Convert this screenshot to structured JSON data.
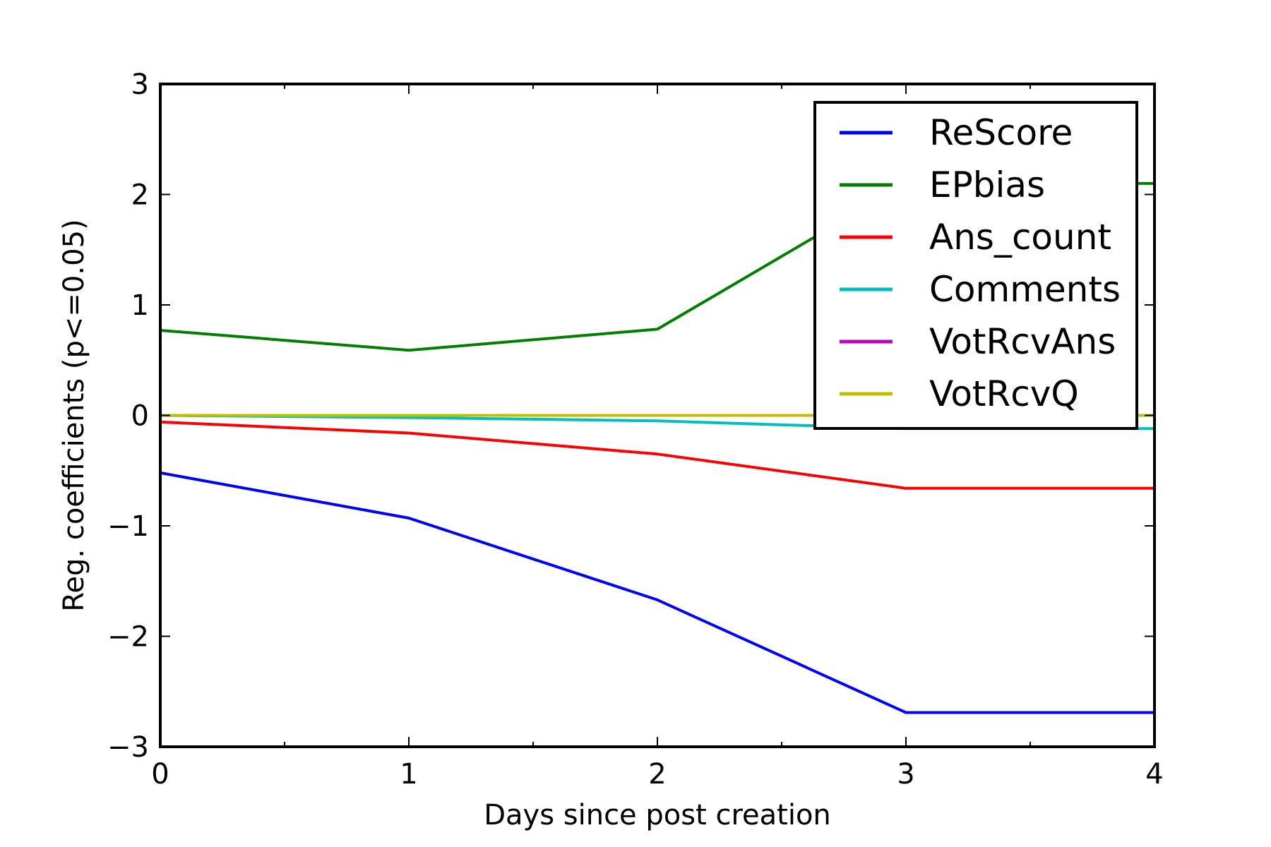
{
  "chart_data": {
    "type": "line",
    "xlabel": "Days since post creation",
    "ylabel": "Reg. coefficients (p<=0.05)",
    "xlim": [
      0,
      4
    ],
    "ylim": [
      -3,
      3
    ],
    "x_ticks": [
      0,
      1,
      2,
      3,
      4
    ],
    "y_ticks": [
      -3,
      -2,
      -1,
      0,
      1,
      2,
      3
    ],
    "x_tick_labels": [
      "0",
      "1",
      "2",
      "3",
      "4"
    ],
    "y_tick_labels": [
      "−3",
      "−2",
      "−1",
      "0",
      "1",
      "2",
      "3"
    ],
    "grid": false,
    "legend_position": "top-right",
    "x": [
      0,
      1,
      2,
      3,
      4
    ],
    "series": [
      {
        "name": "ReScore",
        "color": "#0000ff",
        "values": [
          -0.52,
          -0.93,
          -1.67,
          -2.69,
          -2.69
        ]
      },
      {
        "name": "EPbias",
        "color": "#008000",
        "values": [
          0.77,
          0.59,
          0.78,
          2.1,
          2.1
        ]
      },
      {
        "name": "Ans_count",
        "color": "#ff0000",
        "values": [
          -0.06,
          -0.16,
          -0.35,
          -0.66,
          -0.66
        ]
      },
      {
        "name": "Comments",
        "color": "#00bfbf",
        "values": [
          0.0,
          -0.02,
          -0.05,
          -0.12,
          -0.12
        ]
      },
      {
        "name": "VotRcvAns",
        "color": "#bf00bf",
        "values": [
          0.0,
          0.0,
          0.0,
          0.0,
          0.0
        ]
      },
      {
        "name": "VotRcvQ",
        "color": "#bfbf00",
        "values": [
          0.0,
          0.0,
          0.0,
          0.0,
          0.0
        ]
      }
    ]
  }
}
